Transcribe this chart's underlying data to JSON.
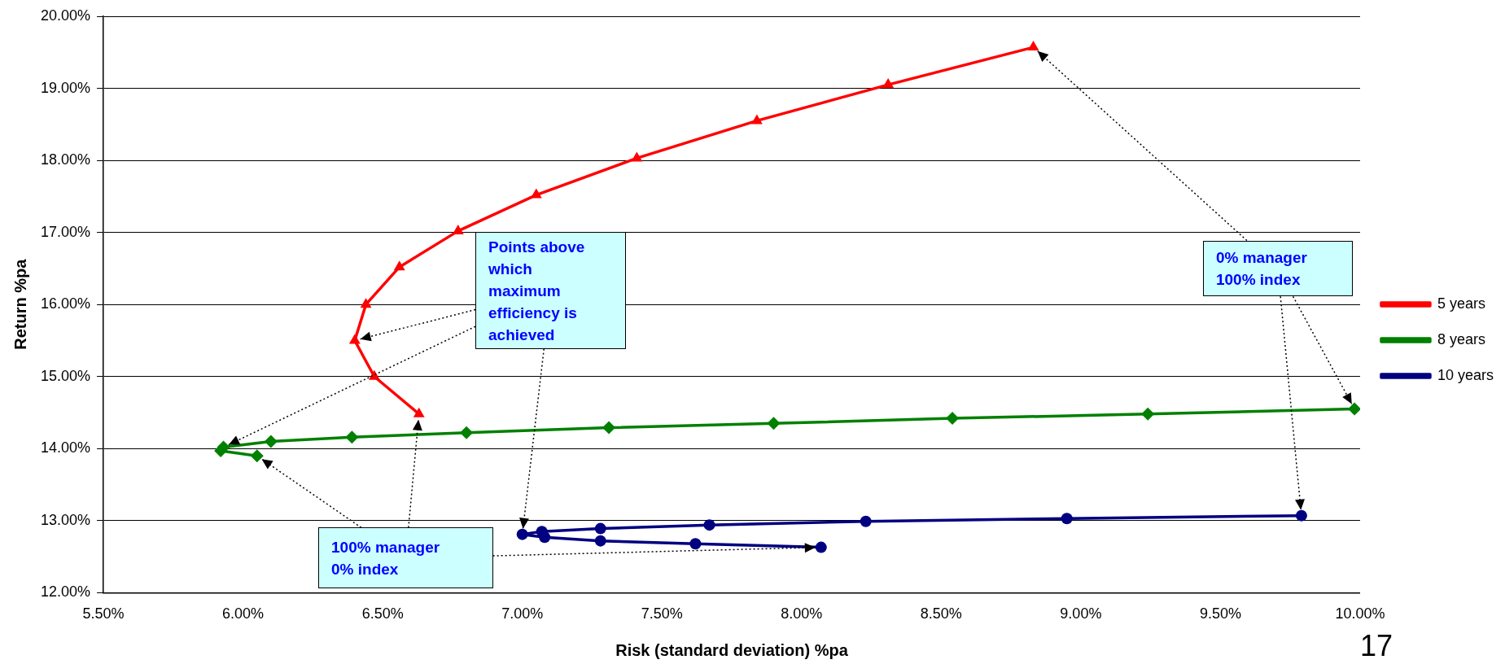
{
  "chart_data": {
    "type": "line",
    "xlabel": "Risk (standard deviation) %pa",
    "ylabel": "Return %pa",
    "series": [
      {
        "name": "5 years",
        "color": "#ff0000",
        "marker": "triangle",
        "x": [
          6.63,
          6.47,
          6.4,
          6.44,
          6.56,
          6.77,
          7.05,
          7.41,
          7.84,
          8.31,
          8.83
        ],
        "values": [
          14.48,
          15.0,
          15.5,
          16.0,
          16.52,
          17.02,
          17.52,
          18.03,
          18.55,
          19.05,
          19.57
        ]
      },
      {
        "name": "8 years",
        "color": "#008000",
        "marker": "diamond",
        "x": [
          6.05,
          5.92,
          5.93,
          6.1,
          6.39,
          6.8,
          7.31,
          7.9,
          8.54,
          9.24,
          9.98
        ],
        "values": [
          13.9,
          13.97,
          14.02,
          14.1,
          14.16,
          14.22,
          14.29,
          14.35,
          14.42,
          14.48,
          14.55
        ]
      },
      {
        "name": "10 years",
        "color": "#000080",
        "marker": "circle",
        "x": [
          8.07,
          7.62,
          7.28,
          7.08,
          7.0,
          7.07,
          7.28,
          7.67,
          8.23,
          8.95,
          9.79
        ],
        "values": [
          12.63,
          12.68,
          12.72,
          12.77,
          12.81,
          12.85,
          12.89,
          12.94,
          12.99,
          13.03,
          13.07
        ]
      }
    ],
    "xlim": [
      5.5,
      10
    ],
    "ylim": [
      12,
      20
    ],
    "xticks": [
      {
        "value": 5.5,
        "label": "5.50%"
      },
      {
        "value": 6,
        "label": "6.00%"
      },
      {
        "value": 6.5,
        "label": "6.50%"
      },
      {
        "value": 7,
        "label": "7.00%"
      },
      {
        "value": 7.5,
        "label": "7.50%"
      },
      {
        "value": 8,
        "label": "8.00%"
      },
      {
        "value": 8.5,
        "label": "8.50%"
      },
      {
        "value": 9,
        "label": "9.00%"
      },
      {
        "value": 9.5,
        "label": "9.50%"
      },
      {
        "value": 10,
        "label": "10.00%"
      }
    ],
    "yticks": [
      {
        "value": 12,
        "label": "12.00%"
      },
      {
        "value": 13,
        "label": "13.00%"
      },
      {
        "value": 14,
        "label": "14.00%"
      },
      {
        "value": 15,
        "label": "15.00%"
      },
      {
        "value": 16,
        "label": "16.00%"
      },
      {
        "value": 17,
        "label": "17.00%"
      },
      {
        "value": 18,
        "label": "18.00%"
      },
      {
        "value": 19,
        "label": "19.00%"
      },
      {
        "value": 20,
        "label": "20.00%"
      }
    ],
    "grid": "y",
    "legend": "right",
    "line_style": "solid",
    "annotations": [
      {
        "text": "Points above which maximum efficiency is achieved",
        "x": 5.93,
        "y": 14.02
      },
      {
        "text": "0% manager 100% index",
        "x": 8.83,
        "y": 19.57
      },
      {
        "text": "100% manager 0% index",
        "x": 6.63,
        "y": 14.48
      },
      "17"
    ]
  }
}
